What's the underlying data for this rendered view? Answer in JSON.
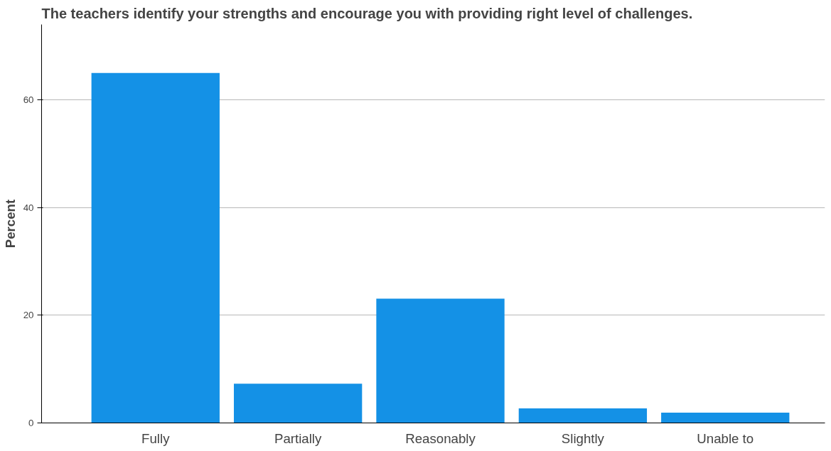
{
  "chart_data": {
    "type": "bar",
    "title": "The teachers identify your strengths and encourage you with providing right level of challenges.",
    "ylabel": "Percent",
    "categories": [
      "Fully",
      "Partially",
      "Reasonably",
      "Slightly",
      "Unable to"
    ],
    "values": [
      65.0,
      7.3,
      23.1,
      2.7,
      1.9
    ],
    "color": "#1491e6",
    "ylim": [
      0,
      74
    ],
    "yticks": [
      0,
      20,
      40,
      60
    ],
    "grid": "y"
  }
}
